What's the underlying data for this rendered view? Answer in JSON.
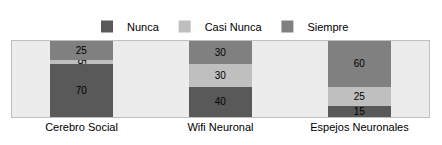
{
  "chart_data": {
    "type": "bar",
    "stacked": true,
    "categories": [
      "Cerebro Social",
      "Wifi Neuronal",
      "Espejos Neuronales"
    ],
    "series": [
      {
        "name": "Nunca",
        "color": "#595959",
        "values": [
          70,
          40,
          15
        ]
      },
      {
        "name": "Casi Nunca",
        "color": "#bfbfbf",
        "values": [
          5,
          30,
          25
        ]
      },
      {
        "name": "Siempre",
        "color": "#808080",
        "values": [
          25,
          30,
          60
        ]
      }
    ],
    "ylim": [
      0,
      100
    ],
    "data_labels": true,
    "tick_labels": "x",
    "legend": "top",
    "grid": false
  }
}
